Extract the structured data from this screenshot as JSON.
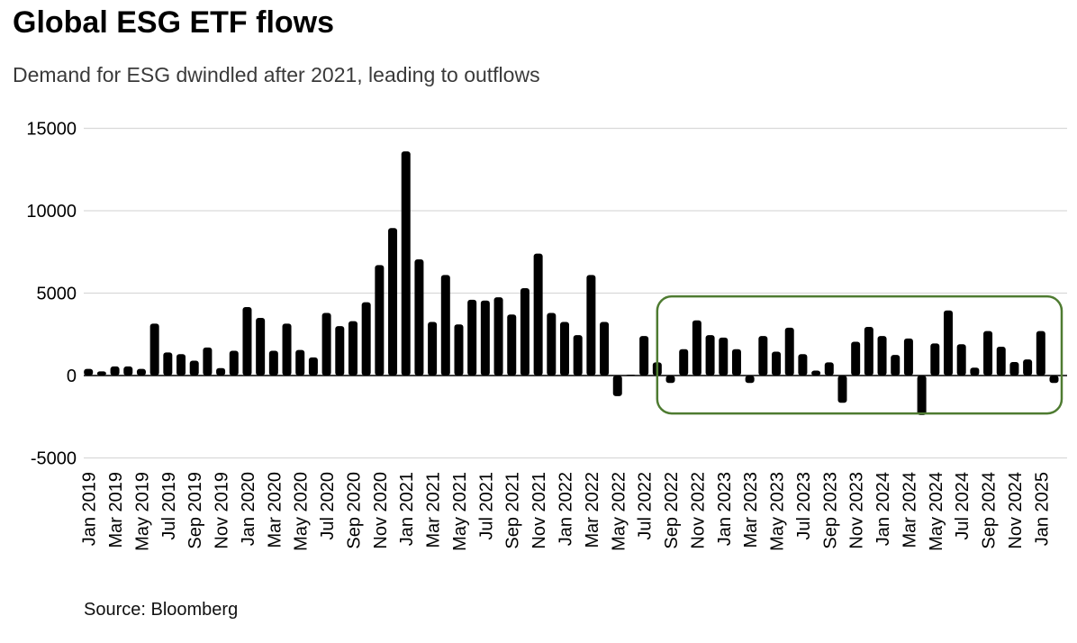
{
  "header": {
    "title": "Global ESG ETF flows",
    "subtitle": "Demand for ESG dwindled after 2021, leading to outflows"
  },
  "footer": {
    "source": "Source: Bloomberg"
  },
  "colors": {
    "bar": "#000000",
    "gridline": "#d9d9d9",
    "zero_line": "#404040",
    "annotation": "#4e7b31",
    "subtitle_text": "#3a3a3a"
  },
  "chart_data": {
    "type": "bar",
    "title": "Global ESG ETF flows",
    "subtitle": "Demand for ESG dwindled after 2021, leading to outflows",
    "xlabel": "",
    "ylabel": "",
    "ylim": [
      -5000,
      15000
    ],
    "yticks": [
      15000,
      10000,
      5000,
      0,
      -5000
    ],
    "grid": "horizontal",
    "legend_position": "none",
    "x_tick_every": 2,
    "categories": [
      "Jan 2019",
      "Feb 2019",
      "Mar 2019",
      "Apr 2019",
      "May 2019",
      "Jun 2019",
      "Jul 2019",
      "Aug 2019",
      "Sep 2019",
      "Oct 2019",
      "Nov 2019",
      "Dec 2019",
      "Jan 2020",
      "Feb 2020",
      "Mar 2020",
      "Apr 2020",
      "May 2020",
      "Jun 2020",
      "Jul 2020",
      "Aug 2020",
      "Sep 2020",
      "Oct 2020",
      "Nov 2020",
      "Dec 2020",
      "Jan 2021",
      "Feb 2021",
      "Mar 2021",
      "Apr 2021",
      "May 2021",
      "Jun 2021",
      "Jul 2021",
      "Aug 2021",
      "Sep 2021",
      "Oct 2021",
      "Nov 2021",
      "Dec 2021",
      "Jan 2022",
      "Feb 2022",
      "Mar 2022",
      "Apr 2022",
      "May 2022",
      "Jun 2022",
      "Jul 2022",
      "Aug 2022",
      "Sep 2022",
      "Oct 2022",
      "Nov 2022",
      "Dec 2022",
      "Jan 2023",
      "Feb 2023",
      "Mar 2023",
      "Apr 2023",
      "May 2023",
      "Jun 2023",
      "Jul 2023",
      "Aug 2023",
      "Sep 2023",
      "Oct 2023",
      "Nov 2023",
      "Dec 2023",
      "Jan 2024",
      "Feb 2024",
      "Mar 2024",
      "Apr 2024",
      "May 2024",
      "Jun 2024",
      "Jul 2024",
      "Aug 2024",
      "Sep 2024",
      "Oct 2024",
      "Nov 2024",
      "Dec 2024",
      "Jan 2025",
      "Feb 2025"
    ],
    "values": [
      400,
      250,
      550,
      550,
      400,
      3150,
      1400,
      1300,
      900,
      1700,
      450,
      1500,
      4150,
      3500,
      1500,
      3150,
      1550,
      1100,
      3800,
      3000,
      3300,
      4450,
      6700,
      8950,
      13600,
      7050,
      3250,
      6100,
      3100,
      4600,
      4550,
      4750,
      3700,
      5300,
      7400,
      3800,
      3250,
      2450,
      6100,
      3250,
      -1250,
      50,
      2400,
      800,
      -450,
      1600,
      3350,
      2450,
      2300,
      1600,
      -450,
      2400,
      1450,
      2900,
      1300,
      300,
      800,
      -1650,
      2050,
      2950,
      2400,
      1250,
      2250,
      -2400,
      1950,
      3950,
      1900,
      480,
      2700,
      1750,
      820,
      980,
      2700,
      -450
    ],
    "annotation": {
      "shape": "rounded-rect",
      "from_category": "Aug 2022",
      "to_category": "Feb 2025",
      "y_top": 4800,
      "y_bottom": -2300,
      "color": "#4e7b31"
    }
  }
}
